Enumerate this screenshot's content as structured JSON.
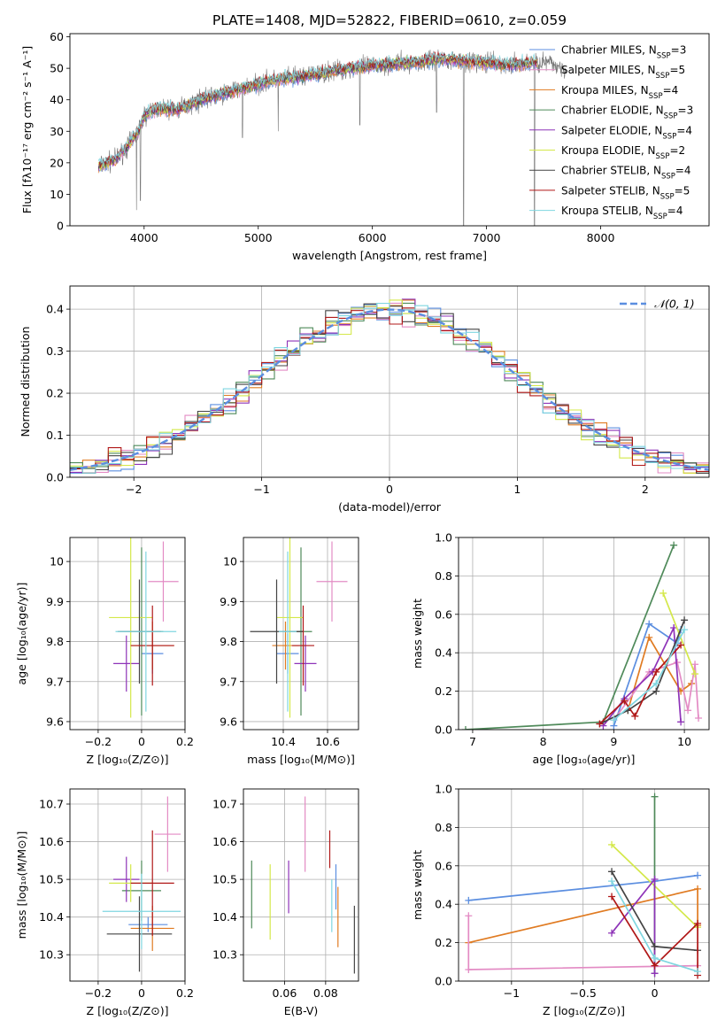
{
  "title": "PLATE=1408, MJD=52822, FIBERID=0610, z=0.059",
  "colors": {
    "Chabrier MILES": "#5b8ee0",
    "Salpeter MILES": "#e38bc4",
    "Kroupa MILES": "#e07b22",
    "Chabrier ELODIE": "#4f8a5a",
    "Salpeter ELODIE": "#8e33b8",
    "Kroupa ELODIE": "#d4e84a",
    "Chabrier STELIB": "#444444",
    "Salpeter STELIB": "#b01818",
    "Kroupa STELIB": "#7fd6e0"
  },
  "chart_data": [
    {
      "id": "spectrum",
      "type": "line",
      "xlabel": "wavelength [Angstrom, rest frame]",
      "ylabel": "Flux [fλ10⁻¹⁷ erg cm⁻² s⁻¹ A⁻¹]",
      "xlim": [
        3350,
        8950
      ],
      "ylim": [
        0,
        61
      ],
      "xticks": [
        4000,
        5000,
        6000,
        7000,
        8000
      ],
      "yticks": [
        0,
        10,
        20,
        30,
        40,
        50,
        60
      ],
      "legend": [
        {
          "name": "Chabrier MILES",
          "nssp": "3"
        },
        {
          "name": "Salpeter MILES",
          "nssp": "5"
        },
        {
          "name": "Kroupa MILES",
          "nssp": "4"
        },
        {
          "name": "Chabrier ELODIE",
          "nssp": "3"
        },
        {
          "name": "Salpeter ELODIE",
          "nssp": "4"
        },
        {
          "name": "Kroupa ELODIE",
          "nssp": "2"
        },
        {
          "name": "Chabrier STELIB",
          "nssp": "4"
        },
        {
          "name": "Salpeter STELIB",
          "nssp": "5"
        },
        {
          "name": "Kroupa STELIB",
          "nssp": "4"
        }
      ],
      "continuum": [
        [
          3600,
          19
        ],
        [
          3750,
          21
        ],
        [
          3850,
          25
        ],
        [
          3950,
          30
        ],
        [
          4000,
          35
        ],
        [
          4100,
          37
        ],
        [
          4300,
          37
        ],
        [
          4500,
          40
        ],
        [
          4700,
          42
        ],
        [
          4900,
          44
        ],
        [
          5100,
          46
        ],
        [
          5300,
          47
        ],
        [
          5500,
          48
        ],
        [
          5800,
          50
        ],
        [
          6100,
          51
        ],
        [
          6400,
          52
        ],
        [
          6600,
          53
        ],
        [
          6900,
          52
        ],
        [
          7200,
          51
        ],
        [
          7500,
          52
        ],
        [
          7700,
          50
        ]
      ],
      "data_range": [
        3600,
        7700
      ],
      "model_range": [
        3600,
        7450
      ],
      "dips": [
        [
          3933,
          5
        ],
        [
          3968,
          8
        ],
        [
          4861,
          28
        ],
        [
          5175,
          30
        ],
        [
          5890,
          32
        ],
        [
          6563,
          36
        ],
        [
          6800,
          0
        ],
        [
          7420,
          0
        ]
      ]
    },
    {
      "id": "residuals",
      "type": "bar",
      "xlabel": "(data-model)/error",
      "ylabel": "Normed distribution",
      "xlim": [
        -2.5,
        2.5
      ],
      "ylim": [
        0,
        0.455
      ],
      "xticks": [
        -2,
        -1,
        0,
        1,
        2
      ],
      "yticks": [
        0.0,
        0.1,
        0.2,
        0.3,
        0.4
      ],
      "bin_width": 0.1,
      "reference_label": "𝒩(0, 1)"
    },
    {
      "id": "age-vs-z",
      "type": "scatter",
      "xlabel": "Z [log₁₀(Z/Z⊙)]",
      "ylabel": "age  [log₁₀(age/yr)]",
      "xlim": [
        -0.33,
        0.2
      ],
      "ylim": [
        9.58,
        10.06
      ],
      "xticks": [
        -0.2,
        0.0,
        0.2
      ],
      "yticks": [
        9.6,
        9.7,
        9.8,
        9.9,
        10.0
      ],
      "points": [
        {
          "series": "Chabrier MILES",
          "x": 0.05,
          "y": 9.77,
          "xerr": 0.05,
          "yerr": 0.05
        },
        {
          "series": "Salpeter MILES",
          "x": 0.1,
          "y": 9.95,
          "xerr": 0.07,
          "yerr": 0.1
        },
        {
          "series": "Kroupa MILES",
          "x": 0.05,
          "y": 9.79,
          "xerr": 0.1,
          "yerr": 0.06
        },
        {
          "series": "Chabrier ELODIE",
          "x": 0.0,
          "y": 9.825,
          "xerr": 0.1,
          "yerr": 0.21
        },
        {
          "series": "Salpeter ELODIE",
          "x": -0.07,
          "y": 9.745,
          "xerr": 0.06,
          "yerr": 0.07
        },
        {
          "series": "Kroupa ELODIE",
          "x": -0.05,
          "y": 9.86,
          "xerr": 0.1,
          "yerr": 0.25
        },
        {
          "series": "Chabrier STELIB",
          "x": -0.01,
          "y": 9.825,
          "xerr": 0.1,
          "yerr": 0.13
        },
        {
          "series": "Salpeter STELIB",
          "x": 0.05,
          "y": 9.79,
          "xerr": 0.1,
          "yerr": 0.1
        },
        {
          "series": "Kroupa STELIB",
          "x": 0.02,
          "y": 9.825,
          "xerr": 0.14,
          "yerr": 0.2
        }
      ]
    },
    {
      "id": "age-vs-mass",
      "type": "scatter",
      "xlabel": "mass [log₁₀(M/M⊙)]",
      "ylabel": "",
      "xlim": [
        10.22,
        10.74
      ],
      "ylim": [
        9.58,
        10.06
      ],
      "xticks": [
        10.4,
        10.6
      ],
      "yticks": [
        9.6,
        9.7,
        9.8,
        9.9,
        10.0
      ],
      "points": [
        {
          "series": "Chabrier MILES",
          "x": 10.42,
          "y": 9.77,
          "xerr": 0.05,
          "yerr": 0.05
        },
        {
          "series": "Salpeter MILES",
          "x": 10.62,
          "y": 9.95,
          "xerr": 0.07,
          "yerr": 0.1
        },
        {
          "series": "Kroupa MILES",
          "x": 10.41,
          "y": 9.79,
          "xerr": 0.06,
          "yerr": 0.06
        },
        {
          "series": "Chabrier ELODIE",
          "x": 10.48,
          "y": 9.825,
          "xerr": 0.05,
          "yerr": 0.21
        },
        {
          "series": "Salpeter ELODIE",
          "x": 10.5,
          "y": 9.745,
          "xerr": 0.05,
          "yerr": 0.07
        },
        {
          "series": "Kroupa ELODIE",
          "x": 10.43,
          "y": 9.86,
          "xerr": 0.06,
          "yerr": 0.25
        },
        {
          "series": "Chabrier STELIB",
          "x": 10.37,
          "y": 9.825,
          "xerr": 0.12,
          "yerr": 0.13
        },
        {
          "series": "Salpeter STELIB",
          "x": 10.49,
          "y": 9.79,
          "xerr": 0.05,
          "yerr": 0.1
        },
        {
          "series": "Kroupa STELIB",
          "x": 10.42,
          "y": 9.825,
          "xerr": 0.04,
          "yerr": 0.2
        }
      ]
    },
    {
      "id": "weight-vs-age",
      "type": "line",
      "xlabel": "age  [log₁₀(age/yr)]",
      "ylabel": "mass weight",
      "xlim": [
        6.8,
        10.35
      ],
      "ylim": [
        0,
        1.0
      ],
      "xticks": [
        7,
        8,
        9,
        10
      ],
      "yticks": [
        0.0,
        0.2,
        0.4,
        0.6,
        0.8,
        1.0
      ],
      "series": [
        {
          "series": "Chabrier ELODIE",
          "points": [
            [
              6.9,
              0.0
            ],
            [
              8.85,
              0.04
            ],
            [
              9.85,
              0.96
            ]
          ]
        },
        {
          "series": "Chabrier MILES",
          "points": [
            [
              9.0,
              0.02
            ],
            [
              9.5,
              0.55
            ],
            [
              9.9,
              0.45
            ],
            [
              9.95,
              0.52
            ]
          ]
        },
        {
          "series": "Kroupa MILES",
          "points": [
            [
              9.2,
              0.1
            ],
            [
              9.5,
              0.48
            ],
            [
              9.95,
              0.2
            ],
            [
              10.1,
              0.24
            ]
          ]
        },
        {
          "series": "Salpeter MILES",
          "points": [
            [
              9.0,
              0.05
            ],
            [
              9.5,
              0.3
            ],
            [
              9.9,
              0.35
            ],
            [
              10.05,
              0.1
            ],
            [
              10.15,
              0.34
            ],
            [
              10.2,
              0.06
            ]
          ]
        },
        {
          "series": "Salpeter ELODIE",
          "points": [
            [
              8.85,
              0.02
            ],
            [
              9.15,
              0.16
            ],
            [
              9.55,
              0.3
            ],
            [
              9.85,
              0.53
            ],
            [
              9.95,
              0.04
            ]
          ]
        },
        {
          "series": "Kroupa ELODIE",
          "points": [
            [
              9.7,
              0.71
            ],
            [
              10.15,
              0.29
            ]
          ]
        },
        {
          "series": "Chabrier STELIB",
          "points": [
            [
              8.8,
              0.03
            ],
            [
              9.2,
              0.1
            ],
            [
              9.6,
              0.2
            ],
            [
              10.0,
              0.57
            ]
          ]
        },
        {
          "series": "Salpeter STELIB",
          "points": [
            [
              8.8,
              0.03
            ],
            [
              9.15,
              0.15
            ],
            [
              9.3,
              0.07
            ],
            [
              9.6,
              0.3
            ],
            [
              9.95,
              0.44
            ]
          ]
        },
        {
          "series": "Kroupa STELIB",
          "points": [
            [
              9.0,
              0.05
            ],
            [
              9.6,
              0.24
            ],
            [
              10.0,
              0.52
            ]
          ]
        }
      ]
    },
    {
      "id": "mass-vs-z",
      "type": "scatter",
      "xlabel": "Z [log₁₀(Z/Z⊙)]",
      "ylabel": "mass [log₁₀(M/M⊙)]",
      "xlim": [
        -0.33,
        0.2
      ],
      "ylim": [
        10.23,
        10.74
      ],
      "xticks": [
        -0.2,
        0.0,
        0.2
      ],
      "yticks": [
        10.3,
        10.4,
        10.5,
        10.6,
        10.7
      ],
      "points": [
        {
          "series": "Chabrier MILES",
          "x": 0.03,
          "y": 10.38,
          "xerr": 0.09,
          "yerr": 0.02
        },
        {
          "series": "Salpeter MILES",
          "x": 0.12,
          "y": 10.62,
          "xerr": 0.06,
          "yerr": 0.1
        },
        {
          "series": "Kroupa MILES",
          "x": 0.05,
          "y": 10.37,
          "xerr": 0.1,
          "yerr": 0.06
        },
        {
          "series": "Chabrier ELODIE",
          "x": 0.0,
          "y": 10.47,
          "xerr": 0.09,
          "yerr": 0.08
        },
        {
          "series": "Salpeter ELODIE",
          "x": -0.07,
          "y": 10.5,
          "xerr": 0.06,
          "yerr": 0.06
        },
        {
          "series": "Kroupa ELODIE",
          "x": -0.05,
          "y": 10.49,
          "xerr": 0.1,
          "yerr": 0.05
        },
        {
          "series": "Chabrier STELIB",
          "x": -0.01,
          "y": 10.355,
          "xerr": 0.15,
          "yerr": 0.1
        },
        {
          "series": "Salpeter STELIB",
          "x": 0.05,
          "y": 10.49,
          "xerr": 0.1,
          "yerr": 0.14
        },
        {
          "series": "Kroupa STELIB",
          "x": 0.0,
          "y": 10.415,
          "xerr": 0.18,
          "yerr": 0.1
        }
      ]
    },
    {
      "id": "mass-vs-ebv",
      "type": "scatter",
      "xlabel": "E(B-V)",
      "ylabel": "",
      "xlim": [
        0.04,
        0.096
      ],
      "ylim": [
        10.23,
        10.74
      ],
      "xticks": [
        0.06,
        0.08
      ],
      "yticks": [
        10.3,
        10.4,
        10.5,
        10.6,
        10.7
      ],
      "points": [
        {
          "series": "Chabrier ELODIE",
          "x": 0.044,
          "y": 10.46,
          "yerr": 0.09
        },
        {
          "series": "Kroupa ELODIE",
          "x": 0.053,
          "y": 10.44,
          "yerr": 0.1
        },
        {
          "series": "Salpeter ELODIE",
          "x": 0.062,
          "y": 10.48,
          "yerr": 0.07
        },
        {
          "series": "Salpeter MILES",
          "x": 0.07,
          "y": 10.62,
          "yerr": 0.1
        },
        {
          "series": "Salpeter STELIB",
          "x": 0.082,
          "y": 10.58,
          "yerr": 0.05
        },
        {
          "series": "Kroupa STELIB",
          "x": 0.083,
          "y": 10.43,
          "yerr": 0.07
        },
        {
          "series": "Chabrier MILES",
          "x": 0.085,
          "y": 10.48,
          "yerr": 0.06
        },
        {
          "series": "Kroupa MILES",
          "x": 0.086,
          "y": 10.4,
          "yerr": 0.08
        },
        {
          "series": "Chabrier STELIB",
          "x": 0.094,
          "y": 10.34,
          "yerr": 0.09
        }
      ]
    },
    {
      "id": "weight-vs-z",
      "type": "line",
      "xlabel": "Z [log₁₀(Z/Z⊙)]",
      "ylabel": "mass weight",
      "xlim": [
        -1.37,
        0.38
      ],
      "ylim": [
        0,
        1.0
      ],
      "xticks": [
        -1.0,
        -0.5,
        0.0
      ],
      "yticks": [
        0.0,
        0.2,
        0.4,
        0.6,
        0.8,
        1.0
      ],
      "series": [
        {
          "series": "Chabrier MILES",
          "points": [
            [
              -1.3,
              0.42
            ],
            [
              0.0,
              0.52
            ],
            [
              0.3,
              0.55
            ]
          ]
        },
        {
          "series": "Kroupa MILES",
          "points": [
            [
              -1.3,
              0.2
            ],
            [
              0.3,
              0.48
            ],
            [
              0.3,
              0.29
            ]
          ]
        },
        {
          "series": "Salpeter MILES",
          "points": [
            [
              -1.3,
              0.34
            ],
            [
              -1.3,
              0.06
            ],
            [
              0.3,
              0.08
            ]
          ]
        },
        {
          "series": "Kroupa ELODIE",
          "points": [
            [
              -0.3,
              0.71
            ],
            [
              0.3,
              0.28
            ]
          ]
        },
        {
          "series": "Chabrier ELODIE",
          "points": [
            [
              0.0,
              0.96
            ],
            [
              0.0,
              0.04
            ]
          ]
        },
        {
          "series": "Salpeter ELODIE",
          "points": [
            [
              -0.3,
              0.25
            ],
            [
              0.0,
              0.53
            ],
            [
              0.0,
              0.04
            ]
          ]
        },
        {
          "series": "Chabrier STELIB",
          "points": [
            [
              -0.3,
              0.57
            ],
            [
              0.0,
              0.18
            ],
            [
              0.3,
              0.16
            ]
          ]
        },
        {
          "series": "Salpeter STELIB",
          "points": [
            [
              -0.3,
              0.44
            ],
            [
              0.0,
              0.08
            ],
            [
              0.3,
              0.3
            ],
            [
              0.3,
              0.03
            ]
          ]
        },
        {
          "series": "Kroupa STELIB",
          "points": [
            [
              -0.3,
              0.52
            ],
            [
              0.0,
              0.12
            ],
            [
              0.3,
              0.05
            ]
          ]
        }
      ]
    }
  ]
}
